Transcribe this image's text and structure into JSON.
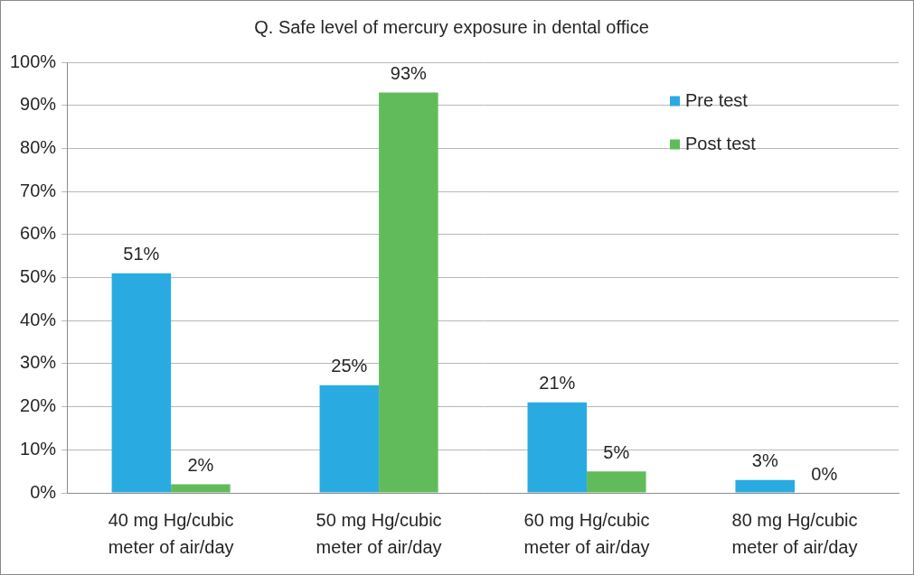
{
  "chart_data": {
    "type": "bar",
    "title": "Q. Safe level of mercury exposure in dental office",
    "categories": [
      "40 mg Hg/cubic meter of air/day",
      "50 mg Hg/cubic meter of air/day",
      "60 mg Hg/cubic meter of air/day",
      "80 mg Hg/cubic meter of air/day"
    ],
    "series": [
      {
        "name": "Pre test",
        "color": "#29abe2",
        "values": [
          51,
          25,
          21,
          3
        ],
        "value_labels": [
          "51%",
          "25%",
          "21%",
          "3%"
        ]
      },
      {
        "name": "Post test",
        "color": "#62bb5a",
        "values": [
          2,
          93,
          5,
          0
        ],
        "value_labels": [
          "2%",
          "93%",
          "5%",
          "0%"
        ]
      }
    ],
    "ylim": [
      0,
      100
    ],
    "yticks": [
      {
        "value": 0,
        "label": "0%"
      },
      {
        "value": 10,
        "label": "10%"
      },
      {
        "value": 20,
        "label": "20%"
      },
      {
        "value": 30,
        "label": "30%"
      },
      {
        "value": 40,
        "label": "40%"
      },
      {
        "value": 50,
        "label": "50%"
      },
      {
        "value": 60,
        "label": "60%"
      },
      {
        "value": 70,
        "label": "70%"
      },
      {
        "value": 80,
        "label": "80%"
      },
      {
        "value": 90,
        "label": "90%"
      },
      {
        "value": 100,
        "label": "100%"
      }
    ],
    "grid": true,
    "legend": "upper right",
    "data_labels": true
  }
}
